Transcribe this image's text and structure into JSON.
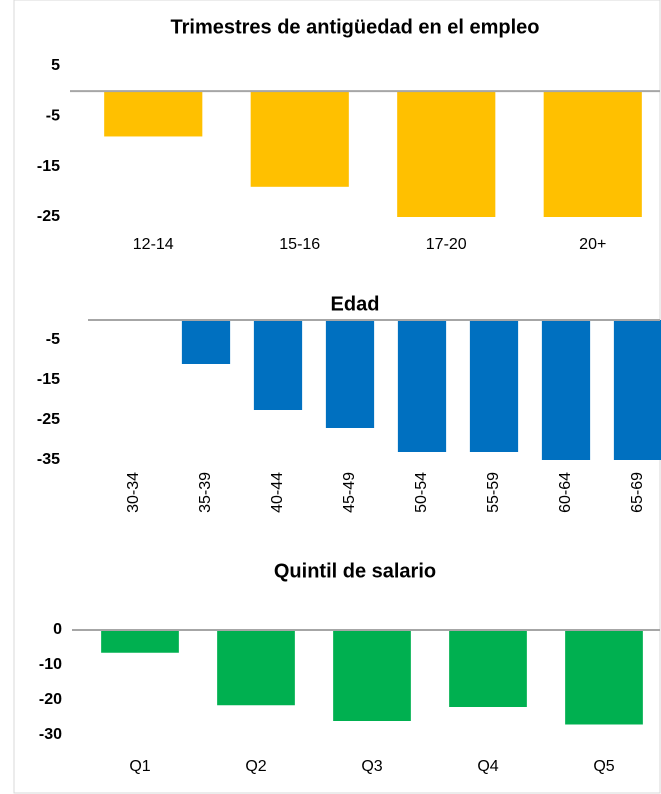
{
  "chart_data": [
    {
      "type": "bar",
      "title": "Trimestres  de antigüedad  en el empleo",
      "categories": [
        "12-14",
        "15-16",
        "17-20",
        "20+"
      ],
      "values": [
        -9,
        -19,
        -25,
        -25
      ],
      "color": "#ffc000",
      "ylim": [
        -25,
        5
      ],
      "yticks": [
        5,
        -5,
        -15,
        -25
      ]
    },
    {
      "type": "bar",
      "title": "Edad",
      "categories": [
        "30-34",
        "35-39",
        "40-44",
        "45-49",
        "50-54",
        "55-59",
        "60-64",
        "65-69"
      ],
      "values": [
        0,
        -11,
        -22.5,
        -27,
        -33,
        -33,
        -35,
        -35
      ],
      "color": "#0070c0",
      "ylim": [
        -35,
        0
      ],
      "yticks": [
        -5,
        -15,
        -25,
        -35
      ]
    },
    {
      "type": "bar",
      "title": "Quintil  de salario",
      "categories": [
        "Q1",
        "Q2",
        "Q3",
        "Q4",
        "Q5"
      ],
      "values": [
        -6.5,
        -21.5,
        -26,
        -22,
        -27
      ],
      "color": "#00b050",
      "ylim": [
        -30,
        0
      ],
      "yticks": [
        0,
        -10,
        -20,
        -30
      ]
    }
  ]
}
